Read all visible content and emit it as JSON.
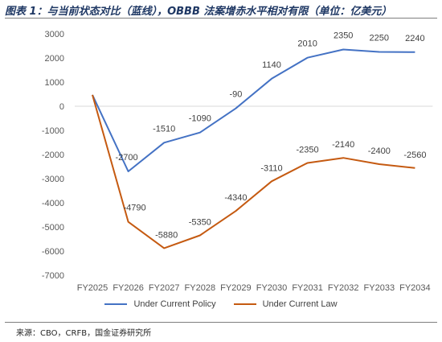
{
  "title": "图表 1：与当前状态对比（蓝线），OBBB 法案增赤水平相对有限（单位：亿美元）",
  "source": "来源：CBO，CRFB，国金证券研究所",
  "chart_data": {
    "type": "line",
    "categories": [
      "FY2025",
      "FY2026",
      "FY2027",
      "FY2028",
      "FY2029",
      "FY2030",
      "FY2031",
      "FY2032",
      "FY2033",
      "FY2034"
    ],
    "series": [
      {
        "name": "Under Current Policy",
        "color": "#4472c4",
        "values": [
          470,
          -2700,
          -1510,
          -1090,
          -90,
          1140,
          2010,
          2350,
          2250,
          2240
        ],
        "labels": [
          "",
          "-2700",
          "-1510",
          "-1090",
          "-90",
          "1140",
          "2010",
          "2350",
          "2250",
          "2240"
        ]
      },
      {
        "name": "Under Current Law",
        "color": "#c55a11",
        "values": [
          470,
          -4790,
          -5880,
          -5350,
          -4340,
          -3110,
          -2350,
          -2140,
          -2400,
          -2560
        ],
        "labels": [
          "",
          "-4790",
          "-5880",
          "-5350",
          "-4340",
          "-3110",
          "-2350",
          "-2140",
          "-2400",
          "-2560"
        ]
      }
    ],
    "ylim": [
      -7000,
      3000
    ],
    "yticks": [
      "3000",
      "2000",
      "1000",
      "0",
      "-1000",
      "-2000",
      "-3000",
      "-4000",
      "-5000",
      "-6000",
      "-7000"
    ],
    "grid": false,
    "legend_position": "bottom"
  }
}
